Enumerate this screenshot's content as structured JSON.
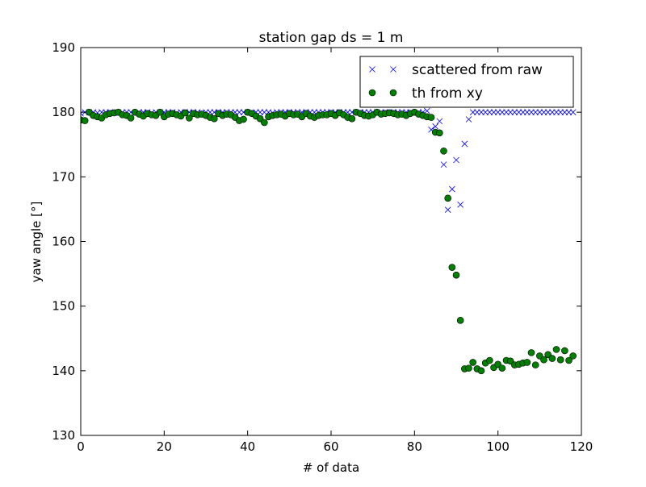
{
  "chart_data": {
    "type": "scatter",
    "title": "station gap ds = 1 m",
    "xlabel": "# of data",
    "ylabel": "yaw angle [°]",
    "xlim": [
      0,
      120
    ],
    "ylim": [
      130,
      190
    ],
    "xticks": [
      0,
      20,
      40,
      60,
      80,
      100,
      120
    ],
    "yticks": [
      130,
      140,
      150,
      160,
      170,
      180,
      190
    ],
    "grid": false,
    "legend_position": "top-right",
    "series": [
      {
        "name": "scattered from raw",
        "marker": "x",
        "color": "#0000ff",
        "x": [
          0,
          1,
          2,
          3,
          4,
          5,
          6,
          7,
          8,
          9,
          10,
          11,
          12,
          13,
          14,
          15,
          16,
          17,
          18,
          19,
          20,
          21,
          22,
          23,
          24,
          25,
          26,
          27,
          28,
          29,
          30,
          31,
          32,
          33,
          34,
          35,
          36,
          37,
          38,
          39,
          40,
          41,
          42,
          43,
          44,
          45,
          46,
          47,
          48,
          49,
          50,
          51,
          52,
          53,
          54,
          55,
          56,
          57,
          58,
          59,
          60,
          61,
          62,
          63,
          64,
          65,
          66,
          67,
          68,
          69,
          70,
          71,
          72,
          73,
          74,
          75,
          76,
          77,
          78,
          79,
          80,
          81,
          82,
          83,
          84,
          85,
          86,
          87,
          88,
          89,
          90,
          91,
          92,
          93,
          94,
          95,
          96,
          97,
          98,
          99,
          100,
          101,
          102,
          103,
          104,
          105,
          106,
          107,
          108,
          109,
          110,
          111,
          112,
          113,
          114,
          115,
          116,
          117,
          118
        ],
        "y": [
          179.8,
          180,
          180,
          180,
          179.9,
          180,
          180,
          180,
          179.9,
          180,
          180,
          180,
          180,
          179.8,
          180,
          180,
          180,
          179.9,
          180,
          180,
          180,
          180,
          180,
          179.9,
          180,
          180,
          180,
          180,
          180,
          179.9,
          180,
          180,
          180,
          180,
          180,
          180,
          180,
          180,
          180,
          180,
          180,
          179.9,
          180,
          180,
          180,
          180,
          179.9,
          180,
          180,
          180,
          180,
          180,
          180,
          180,
          180,
          180,
          180,
          180,
          180,
          180,
          180,
          180,
          180,
          180,
          180,
          180,
          180,
          180,
          180,
          180,
          180,
          180,
          180,
          180,
          180,
          180,
          180,
          180,
          180,
          180,
          179.9,
          180,
          180,
          180.2,
          177.3,
          177.8,
          178.6,
          171.9,
          164.9,
          168.1,
          172.6,
          165.7,
          175.1,
          178.9,
          180,
          180,
          180,
          180,
          180,
          180,
          180,
          180,
          180,
          180,
          180,
          180,
          180,
          180,
          180,
          180,
          180,
          180,
          180,
          180,
          180,
          180,
          180,
          180,
          180
        ]
      },
      {
        "name": "th from xy",
        "marker": "o",
        "color": "#008000",
        "x": [
          0,
          1,
          2,
          3,
          4,
          5,
          6,
          7,
          8,
          9,
          10,
          11,
          12,
          13,
          14,
          15,
          16,
          17,
          18,
          19,
          20,
          21,
          22,
          23,
          24,
          25,
          26,
          27,
          28,
          29,
          30,
          31,
          32,
          33,
          34,
          35,
          36,
          37,
          38,
          39,
          40,
          41,
          42,
          43,
          44,
          45,
          46,
          47,
          48,
          49,
          50,
          51,
          52,
          53,
          54,
          55,
          56,
          57,
          58,
          59,
          60,
          61,
          62,
          63,
          64,
          65,
          66,
          67,
          68,
          69,
          70,
          71,
          72,
          73,
          74,
          75,
          76,
          77,
          78,
          79,
          80,
          81,
          82,
          83,
          84,
          85,
          86,
          87,
          88,
          89,
          90,
          91,
          92,
          93,
          94,
          95,
          96,
          97,
          98,
          99,
          100,
          101,
          102,
          103,
          104,
          105,
          106,
          107,
          108,
          109,
          110,
          111,
          112,
          113,
          114,
          115,
          116,
          117,
          118
        ],
        "y": [
          178.8,
          178.7,
          180,
          179.5,
          179.3,
          179.1,
          179.6,
          179.8,
          179.9,
          180,
          179.6,
          179.5,
          179.1,
          180,
          179.7,
          179.4,
          179.8,
          179.6,
          179.5,
          180,
          179.3,
          179.7,
          179.8,
          179.6,
          179.4,
          179.9,
          179.1,
          179.8,
          179.6,
          179.7,
          179.5,
          179.2,
          179.0,
          179.8,
          179.5,
          179.7,
          179.6,
          179.2,
          178.7,
          178.9,
          180,
          179.8,
          179.4,
          179.0,
          178.4,
          179.3,
          179.5,
          179.6,
          179.7,
          179.4,
          179.8,
          179.6,
          179.7,
          179.3,
          179.8,
          179.4,
          179.2,
          179.5,
          179.6,
          179.6,
          179.8,
          179.5,
          179.9,
          179.6,
          179.2,
          179.0,
          180,
          179.8,
          179.5,
          179.4,
          179.6,
          180,
          179.7,
          179.8,
          179.9,
          179.8,
          179.6,
          179.7,
          179.5,
          179.8,
          180,
          179.7,
          179.5,
          179.3,
          179.2,
          176.9,
          176.8,
          174.0,
          166.7,
          156.0,
          154.8,
          147.8,
          140.3,
          140.4,
          141.3,
          140.3,
          140.0,
          141.2,
          141.6,
          140.5,
          141.0,
          140.4,
          141.6,
          141.5,
          140.9,
          141.0,
          141.2,
          141.3,
          142.8,
          140.9,
          142.3,
          141.7,
          142.5,
          141.9,
          143.3,
          141.7,
          143.1,
          141.6,
          142.3
        ]
      }
    ]
  }
}
